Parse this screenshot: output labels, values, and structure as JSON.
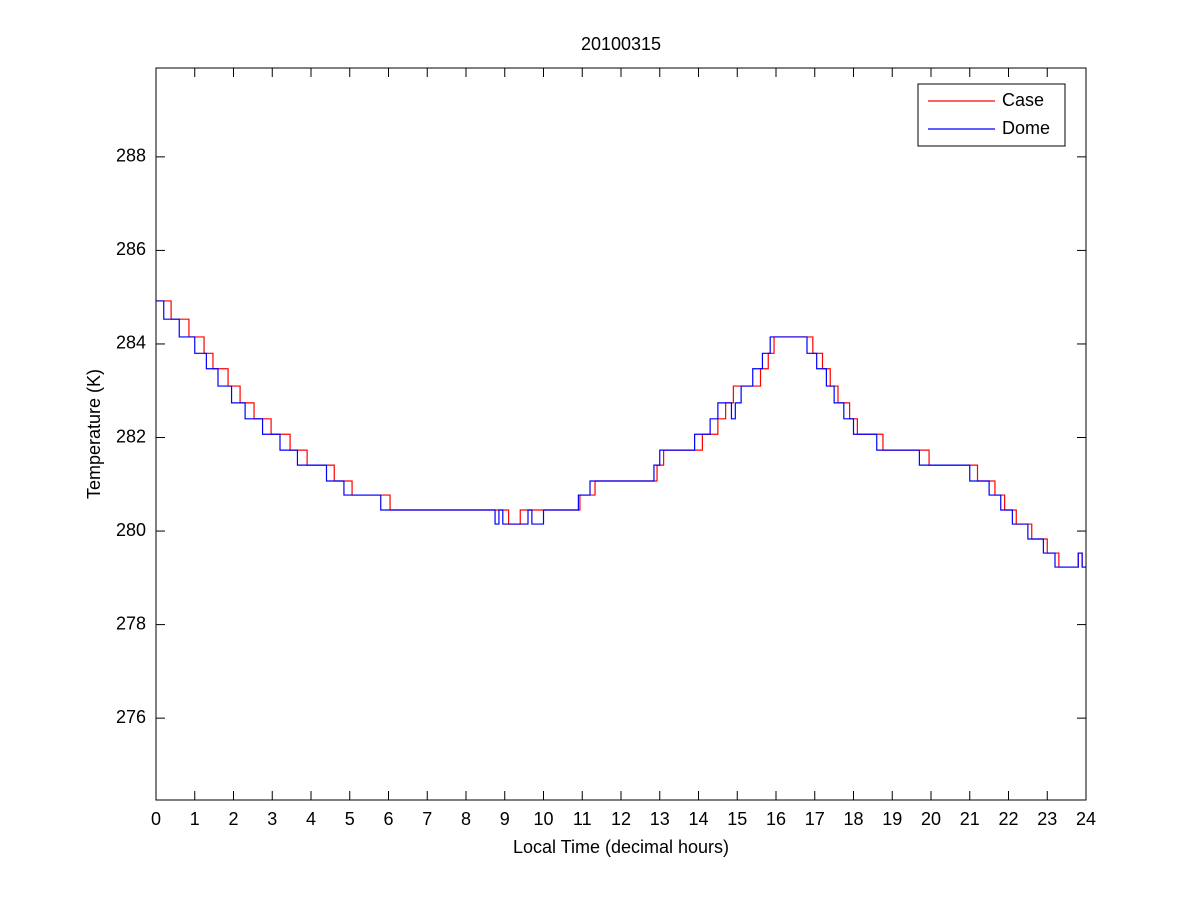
{
  "chart_data": {
    "type": "line",
    "drawstyle": "steps-post",
    "title": "20100315",
    "xlabel": "Local Time (decimal hours)",
    "ylabel": "Temperature (K)",
    "xlim": [
      0,
      24
    ],
    "ylim": [
      274.25,
      289.9
    ],
    "xticks": [
      0,
      1,
      2,
      3,
      4,
      5,
      6,
      7,
      8,
      9,
      10,
      11,
      12,
      13,
      14,
      15,
      16,
      17,
      18,
      19,
      20,
      21,
      22,
      23,
      24
    ],
    "yticks": [
      276,
      278,
      280,
      282,
      284,
      286,
      288
    ],
    "grid": false,
    "legend": "northeast",
    "series": [
      {
        "name": "Case",
        "color": "#ff0000",
        "x": [
          0,
          0.39,
          0.85,
          1.24,
          1.47,
          1.86,
          2.17,
          2.53,
          2.97,
          3.46,
          3.9,
          4.6,
          5.06,
          6.04,
          9.1,
          9.4,
          10.94,
          11.33,
          12.93,
          13.1,
          14.1,
          14.5,
          14.7,
          14.9,
          15.6,
          15.8,
          15.95,
          16.95,
          17.2,
          17.4,
          17.6,
          17.9,
          18.1,
          18.76,
          19.95,
          21.2,
          21.65,
          21.9,
          22.2,
          22.6,
          23.0,
          23.3,
          23.8,
          23.9,
          24
        ],
        "values": [
          284.92,
          284.53,
          284.15,
          283.8,
          283.47,
          283.1,
          282.74,
          282.4,
          282.07,
          281.73,
          281.41,
          281.07,
          280.77,
          280.45,
          280.15,
          280.45,
          280.77,
          281.07,
          281.41,
          281.73,
          282.07,
          282.4,
          282.74,
          283.1,
          283.47,
          283.8,
          284.15,
          283.8,
          283.47,
          283.1,
          282.74,
          282.4,
          282.07,
          281.73,
          281.41,
          281.07,
          280.77,
          280.45,
          280.15,
          279.83,
          279.53,
          279.23,
          279.53,
          279.23,
          279.23
        ]
      },
      {
        "name": "Dome",
        "color": "#0000ff",
        "x": [
          0,
          0.2,
          0.6,
          1.0,
          1.3,
          1.6,
          1.95,
          2.3,
          2.75,
          3.2,
          3.65,
          4.4,
          4.85,
          5.8,
          8.75,
          8.85,
          8.95,
          9.6,
          9.7,
          10.0,
          10.9,
          11.2,
          12.85,
          13.0,
          13.9,
          14.3,
          14.5,
          14.85,
          14.95,
          15.1,
          15.4,
          15.65,
          15.85,
          16.8,
          17.05,
          17.3,
          17.5,
          17.75,
          18.0,
          18.6,
          19.7,
          21.0,
          21.5,
          21.8,
          22.1,
          22.5,
          22.9,
          23.2,
          23.8,
          23.9,
          24
        ],
        "values": [
          284.92,
          284.53,
          284.15,
          283.8,
          283.47,
          283.1,
          282.74,
          282.4,
          282.07,
          281.73,
          281.41,
          281.07,
          280.77,
          280.45,
          280.15,
          280.45,
          280.15,
          280.45,
          280.15,
          280.45,
          280.77,
          281.07,
          281.41,
          281.73,
          282.07,
          282.4,
          282.74,
          282.4,
          282.74,
          283.1,
          283.47,
          283.8,
          284.15,
          283.8,
          283.47,
          283.1,
          282.74,
          282.4,
          282.07,
          281.73,
          281.41,
          281.07,
          280.77,
          280.45,
          280.15,
          279.83,
          279.53,
          279.23,
          279.53,
          279.23,
          279.23
        ]
      }
    ]
  }
}
